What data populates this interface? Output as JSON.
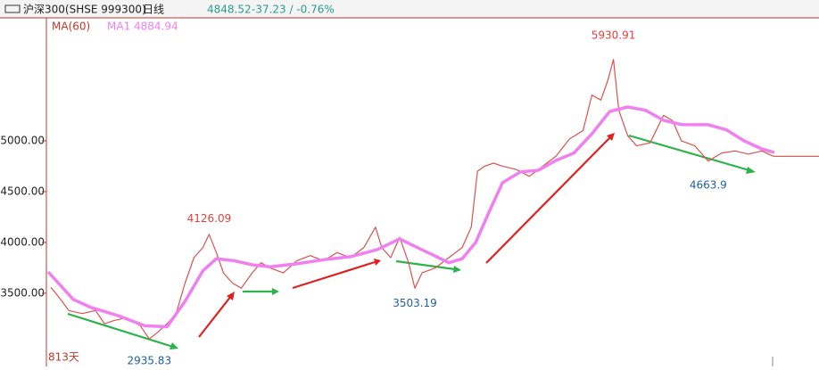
{
  "chart_data": {
    "type": "stock",
    "title": "沪深300(SHSE 999300)",
    "period": "日线",
    "last": 4848.52,
    "change": "-37.23 / -0.76%",
    "indicator": "MA(60)",
    "indicator_value": "MA1 4884.94",
    "days": "813天",
    "xlim": [
      0,
      812
    ],
    "ylim": [
      2780,
      6210
    ],
    "yticks": [
      {
        "value": 3500,
        "label": "3500.00"
      },
      {
        "value": 4000,
        "label": "4000.00"
      },
      {
        "value": 4500,
        "label": "4500.00"
      },
      {
        "value": 5000,
        "label": "5000.00"
      }
    ],
    "series": [
      {
        "name": "price",
        "color": "#d9534f",
        "x": [
          3,
          13,
          23,
          38,
          53,
          63,
          73,
          88,
          103,
          113,
          123,
          133,
          143,
          153,
          163,
          173,
          180,
          188,
          196,
          206,
          216,
          228,
          238,
          248,
          263,
          278,
          293,
          308,
          323,
          338,
          353,
          366,
          373,
          383,
          393,
          403,
          410,
          418,
          433,
          448,
          463,
          473,
          480,
          488,
          498,
          508,
          523,
          538,
          553,
          568,
          583,
          598,
          608,
          618,
          626,
          632,
          638,
          648,
          658,
          673,
          688,
          698,
          708,
          723,
          738,
          753,
          768,
          783,
          798,
          810,
          812
        ],
        "values": [
          3560,
          3450,
          3330,
          3300,
          3330,
          3200,
          3230,
          3260,
          3180,
          3050,
          3120,
          3200,
          3300,
          3600,
          3850,
          3950,
          4080,
          3900,
          3700,
          3600,
          3550,
          3700,
          3800,
          3750,
          3700,
          3820,
          3870,
          3820,
          3900,
          3850,
          3950,
          4150,
          3950,
          3850,
          4050,
          3800,
          3550,
          3700,
          3750,
          3850,
          3950,
          4150,
          4700,
          4750,
          4780,
          4750,
          4720,
          4650,
          4750,
          4850,
          5020,
          5100,
          5450,
          5400,
          5600,
          5800,
          5300,
          5050,
          4950,
          4980,
          5250,
          5200,
          5000,
          4950,
          4800,
          4880,
          4900,
          4870,
          4900,
          4850,
          4848.52
        ]
      },
      {
        "name": "MA1",
        "color": "#f080f0",
        "x": [
          0,
          28,
          48,
          78,
          108,
          133,
          153,
          173,
          188,
          208,
          228,
          248,
          278,
          308,
          338,
          368,
          393,
          408,
          428,
          448,
          463,
          478,
          493,
          508,
          528,
          548,
          568,
          588,
          608,
          628,
          648,
          668,
          688,
          708,
          738,
          758,
          778,
          798,
          812
        ],
        "values": [
          3710,
          3440,
          3360,
          3280,
          3180,
          3170,
          3420,
          3720,
          3840,
          3820,
          3780,
          3760,
          3790,
          3830,
          3860,
          3930,
          4035,
          3970,
          3886,
          3800,
          3840,
          4000,
          4300,
          4588,
          4693,
          4710,
          4807,
          4880,
          5070,
          5289,
          5333,
          5300,
          5202,
          5160,
          5158,
          5110,
          5000,
          4920,
          4884.94
        ]
      }
    ],
    "annotations": [
      {
        "x": 632,
        "value": 5930.91,
        "color": "#e0403f"
      },
      {
        "x": 180,
        "value": 4126.09,
        "color": "#e0403f"
      },
      {
        "x": 410,
        "value": 3503.19,
        "color": "#1f5fa8"
      },
      {
        "x": 113,
        "value": 2935.83,
        "color": "#1f5fa8"
      },
      {
        "x": 738,
        "value": 4663.9,
        "color": "#1f5fa8"
      }
    ]
  }
}
